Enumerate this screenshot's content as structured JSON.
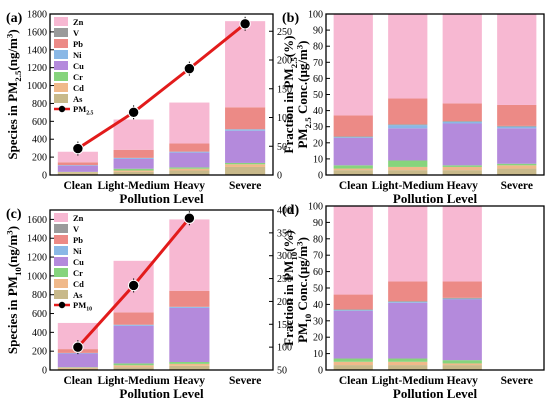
{
  "figure": {
    "panels": [
      "(a)",
      "(b)",
      "(c)",
      "(d)"
    ]
  },
  "colors": {
    "As": "#c8b98a",
    "Cd": "#f0b98a",
    "Cr": "#86d47c",
    "Cu": "#b48adc",
    "Ni": "#8ab8e6",
    "Pb": "#ec8a86",
    "V": "#9a9a9a",
    "Zn": "#f7b8d2",
    "line": "#e21b1b",
    "marker": "#000000"
  },
  "chart_data": [
    {
      "panel": "(a)",
      "type": "bar",
      "stacked": true,
      "categories": [
        "Clean",
        "Light-Medium",
        "Heavy",
        "Severe"
      ],
      "xlabel": "Pollution Level",
      "ylabel": "Species in PM2.5(ng/m3)",
      "ylim": [
        0,
        1800
      ],
      "yticks": [
        "0",
        "200",
        "400",
        "600",
        "800",
        "1000",
        "1200",
        "1400",
        "1600",
        "1800"
      ],
      "y2label": "PM2.5 Conc.(μg/m3)",
      "y2lim": [
        0,
        280
      ],
      "y2ticks": [
        "0",
        "50",
        "100",
        "150",
        "200",
        "250"
      ],
      "legend": [
        "Zn",
        "V",
        "Pb",
        "Ni",
        "Cu",
        "Cr",
        "Cd",
        "As"
      ],
      "legend_line": "PM2.5",
      "series": [
        {
          "name": "As",
          "values": [
            20,
            35,
            50,
            90
          ]
        },
        {
          "name": "Cd",
          "values": [
            10,
            15,
            20,
            30
          ]
        },
        {
          "name": "Cr",
          "values": [
            5,
            20,
            15,
            15
          ]
        },
        {
          "name": "Cu",
          "values": [
            70,
            110,
            165,
            360
          ]
        },
        {
          "name": "Ni",
          "values": [
            5,
            10,
            10,
            15
          ]
        },
        {
          "name": "V",
          "values": [
            2,
            2,
            2,
            2
          ]
        },
        {
          "name": "Pb",
          "values": [
            30,
            90,
            90,
            245
          ]
        },
        {
          "name": "Zn",
          "values": [
            118,
            338,
            458,
            963
          ]
        }
      ],
      "line": {
        "name": "PM2.5",
        "values": [
          46,
          109,
          185,
          263
        ]
      }
    },
    {
      "panel": "(b)",
      "type": "bar",
      "stacked": true,
      "categories": [
        "Clean",
        "Light-Medium",
        "Heavy",
        "Severe"
      ],
      "xlabel": "Pollution Level",
      "ylabel": "Fraction in PM2.5(%)",
      "ylim": [
        0,
        100
      ],
      "yticks": [
        "0",
        "10",
        "20",
        "30",
        "40",
        "50",
        "60",
        "70",
        "80",
        "90",
        "100"
      ],
      "series": [
        {
          "name": "As",
          "values": [
            3,
            3,
            3,
            4
          ]
        },
        {
          "name": "Cd",
          "values": [
            1,
            2,
            2,
            2
          ]
        },
        {
          "name": "Cr",
          "values": [
            2,
            4,
            1,
            1
          ]
        },
        {
          "name": "Cu",
          "values": [
            17,
            20,
            26,
            22
          ]
        },
        {
          "name": "Ni",
          "values": [
            0.5,
            2,
            1,
            1
          ]
        },
        {
          "name": "V",
          "values": [
            0.5,
            0.5,
            0.5,
            0.5
          ]
        },
        {
          "name": "Pb",
          "values": [
            13,
            16,
            11,
            13
          ]
        },
        {
          "name": "Zn",
          "values": [
            63,
            52.5,
            55.5,
            56.5
          ]
        }
      ]
    },
    {
      "panel": "(c)",
      "type": "bar",
      "stacked": true,
      "categories": [
        "Clean",
        "Light-Medium",
        "Heavy",
        "Severe"
      ],
      "xlabel": "Pollution Level",
      "ylabel": "Species in PM10(ng/m3)",
      "ylim": [
        0,
        1700
      ],
      "yticks": [
        "0",
        "200",
        "400",
        "600",
        "800",
        "1000",
        "1200",
        "1400",
        "1600"
      ],
      "y2label": "PM10 Conc.(μg/m3)",
      "y2lim": [
        50,
        400
      ],
      "y2ticks": [
        "50",
        "100",
        "150",
        "200",
        "250",
        "300",
        "350",
        "400"
      ],
      "legend": [
        "Zn",
        "V",
        "Pb",
        "Ni",
        "Cu",
        "Cr",
        "Cd",
        "As"
      ],
      "legend_line": "PM10",
      "series": [
        {
          "name": "As",
          "values": [
            15,
            30,
            45,
            0
          ]
        },
        {
          "name": "Cd",
          "values": [
            10,
            20,
            20,
            0
          ]
        },
        {
          "name": "Cr",
          "values": [
            5,
            20,
            20,
            0
          ]
        },
        {
          "name": "Cu",
          "values": [
            145,
            400,
            575,
            0
          ]
        },
        {
          "name": "Ni",
          "values": [
            5,
            10,
            10,
            0
          ]
        },
        {
          "name": "V",
          "values": [
            2,
            2,
            2,
            0
          ]
        },
        {
          "name": "Pb",
          "values": [
            40,
            130,
            170,
            0
          ]
        },
        {
          "name": "Zn",
          "values": [
            278,
            548,
            758,
            0
          ]
        }
      ],
      "line": {
        "name": "PM10",
        "values": [
          100,
          235,
          382,
          null
        ]
      }
    },
    {
      "panel": "(d)",
      "type": "bar",
      "stacked": true,
      "categories": [
        "Clean",
        "Light-Medium",
        "Heavy",
        "Severe"
      ],
      "xlabel": "Pollution Level",
      "ylabel": "Fraction in PM10(%)",
      "ylim": [
        0,
        100
      ],
      "yticks": [
        "0",
        "10",
        "20",
        "30",
        "40",
        "50",
        "60",
        "70",
        "80",
        "90",
        "100"
      ],
      "series": [
        {
          "name": "As",
          "values": [
            3,
            3,
            3,
            0
          ]
        },
        {
          "name": "Cd",
          "values": [
            2,
            2,
            1,
            0
          ]
        },
        {
          "name": "Cr",
          "values": [
            2,
            2,
            2,
            0
          ]
        },
        {
          "name": "Cu",
          "values": [
            29,
            34,
            37,
            0
          ]
        },
        {
          "name": "Ni",
          "values": [
            0.5,
            0.5,
            0.5,
            0
          ]
        },
        {
          "name": "V",
          "values": [
            0.5,
            0.5,
            0.5,
            0
          ]
        },
        {
          "name": "Pb",
          "values": [
            9,
            12,
            10,
            0
          ]
        },
        {
          "name": "Zn",
          "values": [
            54,
            46,
            46,
            0
          ]
        }
      ]
    }
  ]
}
